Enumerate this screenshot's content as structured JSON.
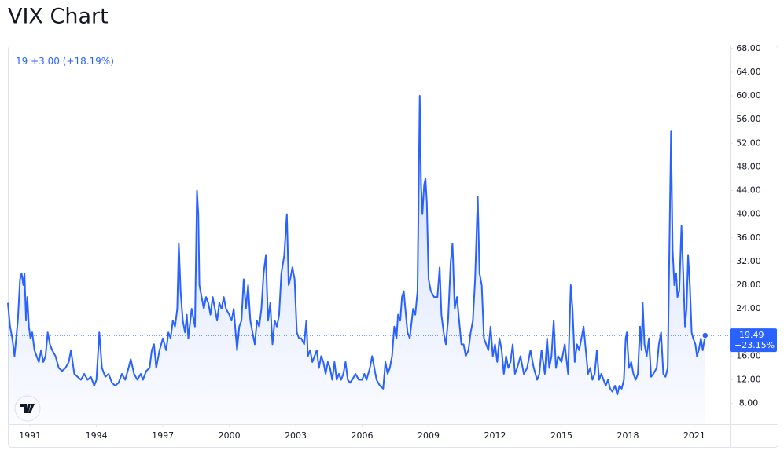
{
  "title": "VIX Chart",
  "chart_data": {
    "type": "area",
    "color": "#2962ff",
    "grid": false,
    "legend_change": "+3.00",
    "legend_change_pct": "(+18.19%)",
    "price_tag_change": "−23.15%",
    "xlim": [
      1990.0,
      2022.6
    ],
    "ylim": [
      4.5,
      68.5
    ],
    "xticks": [
      1991,
      1994,
      1997,
      2000,
      2003,
      2006,
      2009,
      2012,
      2015,
      2018,
      2021
    ],
    "yticks": [
      {
        "value": 8,
        "label": "8.00"
      },
      {
        "value": 12,
        "label": "12.00"
      },
      {
        "value": 16,
        "label": "16.00"
      },
      {
        "value": 20,
        "label": "20.00"
      },
      {
        "value": 24,
        "label": "24.00"
      },
      {
        "value": 28,
        "label": "28.00"
      },
      {
        "value": 32,
        "label": "32.00"
      },
      {
        "value": 36,
        "label": "36.00"
      },
      {
        "value": 40,
        "label": "40.00"
      },
      {
        "value": 44,
        "label": "44.00"
      },
      {
        "value": 48,
        "label": "48.00"
      },
      {
        "value": 52,
        "label": "52.00"
      },
      {
        "value": 56,
        "label": "56.00"
      },
      {
        "value": 60,
        "label": "60.00"
      },
      {
        "value": 64,
        "label": "64.00"
      },
      {
        "value": 68,
        "label": "68.00"
      }
    ],
    "x": [
      1990.0,
      1990.1,
      1990.2,
      1990.3,
      1990.45,
      1990.55,
      1990.62,
      1990.7,
      1990.75,
      1990.82,
      1990.88,
      1990.95,
      1991.02,
      1991.1,
      1991.2,
      1991.3,
      1991.4,
      1991.5,
      1991.6,
      1991.7,
      1991.8,
      1991.9,
      1992.0,
      1992.15,
      1992.3,
      1992.45,
      1992.6,
      1992.75,
      1992.85,
      1993.0,
      1993.15,
      1993.3,
      1993.45,
      1993.6,
      1993.75,
      1993.9,
      1994.0,
      1994.13,
      1994.25,
      1994.4,
      1994.55,
      1994.7,
      1994.85,
      1995.0,
      1995.15,
      1995.3,
      1995.45,
      1995.55,
      1995.7,
      1995.85,
      1996.0,
      1996.1,
      1996.25,
      1996.4,
      1996.5,
      1996.6,
      1996.7,
      1996.85,
      1997.0,
      1997.15,
      1997.25,
      1997.35,
      1997.45,
      1997.55,
      1997.65,
      1997.72,
      1997.8,
      1997.9,
      1998.0,
      1998.08,
      1998.15,
      1998.3,
      1998.45,
      1998.54,
      1998.6,
      1998.65,
      1998.75,
      1998.85,
      1998.95,
      1999.05,
      1999.15,
      1999.25,
      1999.35,
      1999.45,
      1999.55,
      1999.65,
      1999.75,
      1999.85,
      2000.0,
      2000.1,
      2000.2,
      2000.35,
      2000.45,
      2000.55,
      2000.65,
      2000.75,
      2000.85,
      2000.95,
      2001.05,
      2001.15,
      2001.25,
      2001.35,
      2001.45,
      2001.55,
      2001.65,
      2001.75,
      2001.85,
      2001.95,
      2002.05,
      2002.15,
      2002.25,
      2002.35,
      2002.48,
      2002.6,
      2002.68,
      2002.75,
      2002.85,
      2002.95,
      2003.05,
      2003.15,
      2003.25,
      2003.38,
      2003.48,
      2003.55,
      2003.65,
      2003.75,
      2003.85,
      2003.95,
      2004.05,
      2004.15,
      2004.25,
      2004.35,
      2004.45,
      2004.55,
      2004.65,
      2004.75,
      2004.85,
      2004.95,
      2005.05,
      2005.15,
      2005.25,
      2005.35,
      2005.45,
      2005.55,
      2005.7,
      2005.85,
      2006.0,
      2006.1,
      2006.2,
      2006.35,
      2006.45,
      2006.55,
      2006.65,
      2006.8,
      2006.95,
      2007.05,
      2007.15,
      2007.25,
      2007.35,
      2007.45,
      2007.55,
      2007.62,
      2007.72,
      2007.8,
      2007.88,
      2007.95,
      2008.05,
      2008.15,
      2008.3,
      2008.4,
      2008.5,
      2008.6,
      2008.66,
      2008.72,
      2008.8,
      2008.86,
      2008.92,
      2009.0,
      2009.1,
      2009.25,
      2009.4,
      2009.5,
      2009.58,
      2009.68,
      2009.78,
      2009.88,
      2010.0,
      2010.08,
      2010.18,
      2010.28,
      2010.38,
      2010.48,
      2010.58,
      2010.68,
      2010.8,
      2010.9,
      2011.0,
      2011.1,
      2011.22,
      2011.3,
      2011.4,
      2011.5,
      2011.6,
      2011.7,
      2011.8,
      2011.9,
      2012.0,
      2012.1,
      2012.2,
      2012.3,
      2012.4,
      2012.5,
      2012.6,
      2012.7,
      2012.8,
      2012.9,
      2013.0,
      2013.15,
      2013.3,
      2013.45,
      2013.6,
      2013.75,
      2013.9,
      2014.0,
      2014.1,
      2014.25,
      2014.35,
      2014.45,
      2014.55,
      2014.65,
      2014.75,
      2014.85,
      2015.0,
      2015.15,
      2015.3,
      2015.42,
      2015.5,
      2015.6,
      2015.7,
      2015.8,
      2015.9,
      2016.0,
      2016.1,
      2016.2,
      2016.3,
      2016.4,
      2016.5,
      2016.6,
      2016.7,
      2016.8,
      2016.9,
      2017.0,
      2017.1,
      2017.2,
      2017.3,
      2017.42,
      2017.52,
      2017.62,
      2017.72,
      2017.82,
      2017.9,
      2017.95,
      2018.05,
      2018.15,
      2018.25,
      2018.35,
      2018.45,
      2018.55,
      2018.62,
      2018.67,
      2018.75,
      2018.85,
      2018.95,
      2019.05,
      2019.15,
      2019.3,
      2019.4,
      2019.5,
      2019.6,
      2019.7,
      2019.8,
      2019.9,
      2019.95,
      2020.02,
      2020.1,
      2020.18,
      2020.24,
      2020.32,
      2020.42,
      2020.5,
      2020.58,
      2020.65,
      2020.72,
      2020.8,
      2020.88,
      2020.95,
      2021.05,
      2021.12,
      2021.2,
      2021.3,
      2021.38,
      2021.49
    ],
    "values": [
      25,
      21,
      19,
      16,
      22,
      29,
      30,
      28,
      30,
      22,
      26,
      21,
      19,
      20,
      17,
      16,
      15,
      17,
      15,
      16,
      20,
      18,
      17,
      16,
      14,
      13.5,
      14,
      15,
      17,
      13,
      12.5,
      12,
      13,
      12,
      12.5,
      11,
      12,
      20,
      14,
      12.5,
      13,
      11.5,
      11,
      11.5,
      13,
      12,
      14,
      15.5,
      13,
      12,
      13,
      12,
      13.5,
      14,
      17,
      18,
      14,
      17,
      19,
      17,
      20,
      19,
      22,
      21,
      24,
      35,
      27,
      22,
      20,
      23,
      19,
      24,
      21,
      44,
      40,
      28,
      26,
      24,
      26,
      25,
      23,
      26,
      24,
      22,
      25,
      24,
      26,
      24,
      23,
      22,
      24,
      17,
      21,
      22,
      29,
      24,
      28,
      22,
      20,
      18,
      22,
      21,
      24,
      30,
      33,
      22,
      25,
      18,
      22,
      21,
      23,
      30,
      33,
      40,
      28,
      29,
      31,
      29,
      20,
      19,
      19,
      18,
      22,
      16,
      17,
      15,
      16,
      17,
      14,
      16,
      15,
      13,
      15,
      14,
      12,
      15,
      12,
      13,
      12,
      13,
      15,
      12,
      11.5,
      12,
      13,
      12,
      12,
      13,
      12,
      14,
      16,
      14,
      12,
      11,
      10.5,
      15,
      13,
      14,
      16,
      21,
      19,
      23,
      22,
      26,
      27,
      24,
      20,
      19,
      24,
      23,
      27,
      60,
      45,
      40,
      45,
      46,
      42,
      29,
      27,
      26,
      26,
      31,
      23,
      20,
      18,
      22,
      32,
      35,
      24,
      26,
      22,
      18,
      18,
      16,
      17,
      20,
      22,
      29,
      43,
      30,
      28,
      19,
      18,
      17,
      21,
      16,
      18,
      15,
      19,
      17,
      13,
      16,
      14,
      15,
      18,
      13,
      14,
      16,
      13,
      14,
      17,
      14,
      12,
      13,
      17,
      13,
      19,
      14,
      16,
      22,
      14,
      16,
      15,
      18,
      13,
      28,
      24,
      15,
      18,
      17,
      19,
      21,
      17,
      13,
      14,
      12,
      13,
      17,
      12,
      13,
      12,
      11,
      12,
      10.5,
      10,
      11,
      9.5,
      11,
      10.5,
      12,
      19,
      20,
      14,
      15,
      13,
      12,
      13,
      21,
      17,
      25,
      18,
      16,
      19,
      12.5,
      13,
      14,
      18,
      20,
      13,
      12.5,
      14,
      41,
      54,
      34,
      28,
      30,
      26,
      27,
      38,
      30,
      21,
      24,
      33,
      28,
      20,
      19,
      18,
      16,
      17,
      19,
      17,
      19.49
    ]
  }
}
